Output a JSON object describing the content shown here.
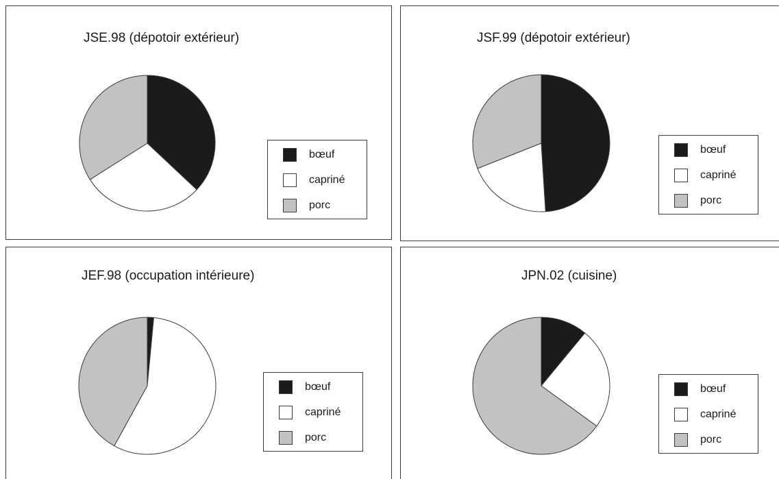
{
  "colors": {
    "boeuf": "#1c1a1b",
    "caprine": "#ffffff",
    "porc": "#c2c2c2",
    "stroke": "#3a3a3a"
  },
  "chart_data": [
    {
      "type": "pie",
      "title": "JSE.98 (dépotoir extérieur)",
      "categories": [
        "bœuf",
        "capriné",
        "porc"
      ],
      "values": [
        37,
        29,
        34
      ],
      "unit": "%"
    },
    {
      "type": "pie",
      "title": "JSF.99 (dépotoir extérieur)",
      "categories": [
        "bœuf",
        "capriné",
        "porc"
      ],
      "values": [
        49,
        20,
        31
      ],
      "unit": "%"
    },
    {
      "type": "pie",
      "title": "JEF.98 (occupation intérieure)",
      "categories": [
        "bœuf",
        "capriné",
        "porc"
      ],
      "values": [
        1.5,
        56.5,
        42
      ],
      "unit": "%"
    },
    {
      "type": "pie",
      "title": "JPN.02 (cuisine)",
      "categories": [
        "bœuf",
        "capriné",
        "porc"
      ],
      "values": [
        11,
        24,
        65
      ],
      "unit": "%"
    }
  ]
}
